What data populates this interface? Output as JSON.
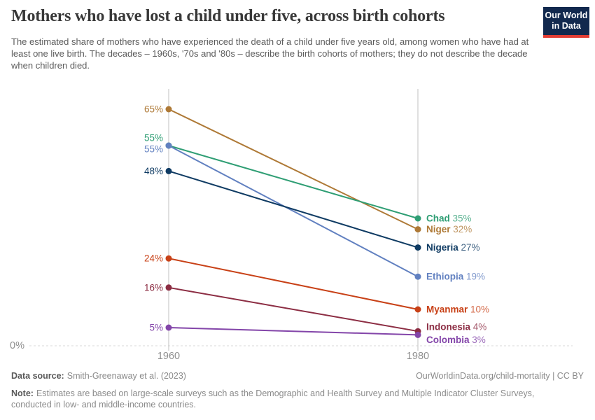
{
  "header": {
    "title": "Mothers who have lost a child under five, across birth cohorts",
    "subtitle": "The estimated share of mothers who have experienced the death of a child under five years old, among women who have had at least one live birth. The decades – 1960s, '70s and '80s – describe the birth cohorts of mothers; they do not describe the decade when children died.",
    "logo_line1": "Our World",
    "logo_line2": "in Data"
  },
  "chart_data": {
    "type": "line",
    "subtype": "slope",
    "title": "Mothers who have lost a child under five, across birth cohorts",
    "x": [
      "1960",
      "1980"
    ],
    "xlabel": "",
    "ylabel": "",
    "ylim": [
      0,
      70
    ],
    "grid": "zero-baseline-only",
    "zero_label": "0%",
    "value_suffix": "%",
    "legend_position": "right-of-lines",
    "series": [
      {
        "name": "Niger",
        "color": "#AE7936",
        "values": [
          65,
          32
        ]
      },
      {
        "name": "Chad",
        "color": "#2F9E74",
        "values": [
          55,
          35
        ],
        "left_dy": -11
      },
      {
        "name": "Ethiopia",
        "color": "#6180C0",
        "values": [
          55,
          19
        ],
        "left_dy": 5
      },
      {
        "name": "Nigeria",
        "color": "#0F3B63",
        "values": [
          48,
          27
        ]
      },
      {
        "name": "Myanmar",
        "color": "#C84117",
        "values": [
          24,
          10
        ]
      },
      {
        "name": "Indonesia",
        "color": "#8C2D43",
        "values": [
          16,
          4
        ],
        "right_dy": -6
      },
      {
        "name": "Colombia",
        "color": "#8345A9",
        "values": [
          5,
          3
        ],
        "right_dy": 7
      }
    ]
  },
  "footer": {
    "source_label": "Data source:",
    "source_value": "Smith-Greenaway et al. (2023)",
    "link": "OurWorldinData.org/child-mortality",
    "divider": "|",
    "license": "CC BY",
    "note_label": "Note:",
    "note_value": "Estimates are based on large-scale surveys such as the Demographic and Health Survey and Multiple Indicator Cluster Surveys, conducted in low- and middle-income countries."
  },
  "colors": {
    "axis_line": "#c2c2c2",
    "grid_dashed": "#d9d9d9",
    "tick_text": "#8f8f8f",
    "logo_bg": "#12294e",
    "logo_accent": "#e23d34"
  }
}
